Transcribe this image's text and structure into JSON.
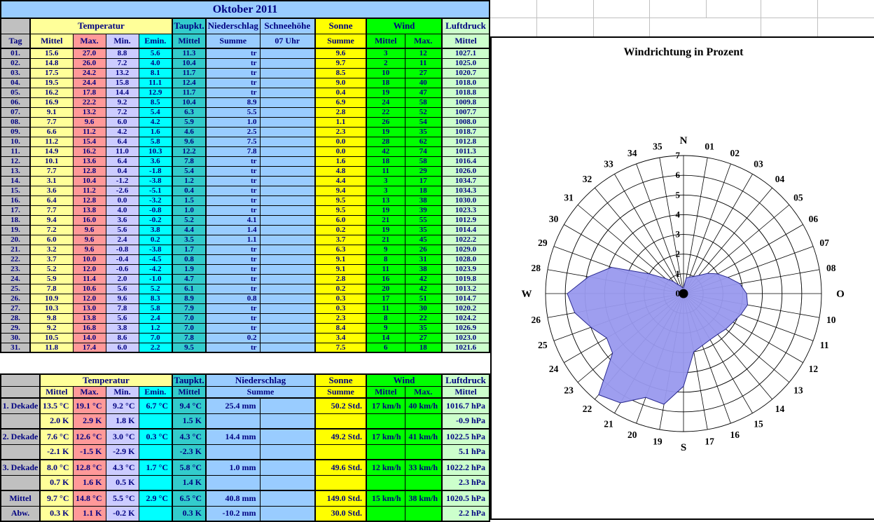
{
  "title": "Oktober 2011",
  "colors": {
    "header_blue": "#99CCFF",
    "yellow_pale": "#FFFF99",
    "salmon": "#FF9999",
    "lavender": "#CCCCFF",
    "cyan": "#00FFFF",
    "teal": "#33CCCC",
    "light_blue": "#99CCFF",
    "yellow": "#FFFF00",
    "green": "#00FF00",
    "pale_green": "#CCFFCC",
    "gray": "#C0C0C0",
    "text_navy": "#000080",
    "rose_fill": "#9999EE",
    "rose_stroke": "#2A2A90"
  },
  "daily_table": {
    "group_headers": [
      {
        "label": "",
        "span": 1
      },
      {
        "label": "Temperatur",
        "span": 4
      },
      {
        "label": "Taupkt.",
        "span": 1
      },
      {
        "label": "Niederschlag",
        "span": 1
      },
      {
        "label": "Schneehöhe",
        "span": 1
      },
      {
        "label": "Sonne",
        "span": 1
      },
      {
        "label": "Wind",
        "span": 2
      },
      {
        "label": "Luftdruck",
        "span": 1
      }
    ],
    "col_headers": [
      "Tag",
      "Mittel",
      "Max.",
      "Min.",
      "Emin.",
      "Mittel",
      "Summe",
      "07 Uhr",
      "Summe",
      "Mittel",
      "Max.",
      "Mittel"
    ],
    "rows": [
      [
        "01.",
        "15.6",
        "27.0",
        "8.8",
        "5.6",
        "11.3",
        "tr",
        "",
        "9.6",
        "3",
        "12",
        "1027.1"
      ],
      [
        "02.",
        "14.8",
        "26.0",
        "7.2",
        "4.0",
        "10.4",
        "tr",
        "",
        "9.7",
        "2",
        "11",
        "1025.0"
      ],
      [
        "03.",
        "17.5",
        "24.2",
        "13.2",
        "8.1",
        "11.7",
        "tr",
        "",
        "8.5",
        "10",
        "27",
        "1020.7"
      ],
      [
        "04.",
        "19.5",
        "24.4",
        "15.8",
        "11.1",
        "12.4",
        "tr",
        "",
        "9.0",
        "18",
        "40",
        "1018.0"
      ],
      [
        "05.",
        "16.2",
        "17.8",
        "14.4",
        "12.9",
        "11.7",
        "tr",
        "",
        "0.4",
        "19",
        "47",
        "1018.8"
      ],
      [
        "06.",
        "16.9",
        "22.2",
        "9.2",
        "8.5",
        "10.4",
        "8.9",
        "",
        "6.9",
        "24",
        "58",
        "1009.8"
      ],
      [
        "07.",
        "9.1",
        "13.2",
        "7.2",
        "5.4",
        "6.3",
        "5.5",
        "",
        "2.8",
        "22",
        "52",
        "1007.7"
      ],
      [
        "08.",
        "7.7",
        "9.6",
        "6.0",
        "4.2",
        "5.9",
        "1.0",
        "",
        "1.1",
        "26",
        "54",
        "1008.0"
      ],
      [
        "09.",
        "6.6",
        "11.2",
        "4.2",
        "1.6",
        "4.6",
        "2.5",
        "",
        "2.3",
        "19",
        "35",
        "1018.7"
      ],
      [
        "10.",
        "11.2",
        "15.4",
        "6.4",
        "5.8",
        "9.6",
        "7.5",
        "",
        "0.0",
        "28",
        "62",
        "1012.8"
      ],
      [
        "11.",
        "14.9",
        "16.2",
        "11.0",
        "10.3",
        "12.2",
        "7.8",
        "",
        "0.0",
        "42",
        "74",
        "1011.3"
      ],
      [
        "12.",
        "10.1",
        "13.6",
        "6.4",
        "3.6",
        "7.8",
        "tr",
        "",
        "1.6",
        "18",
        "58",
        "1016.4"
      ],
      [
        "13.",
        "7.7",
        "12.8",
        "0.4",
        "-1.8",
        "5.4",
        "tr",
        "",
        "4.8",
        "11",
        "29",
        "1026.0"
      ],
      [
        "14.",
        "3.1",
        "10.4",
        "-1.2",
        "-3.8",
        "1.2",
        "tr",
        "",
        "4.4",
        "3",
        "17",
        "1034.7"
      ],
      [
        "15.",
        "3.6",
        "11.2",
        "-2.6",
        "-5.1",
        "0.4",
        "tr",
        "",
        "9.4",
        "3",
        "18",
        "1034.3"
      ],
      [
        "16.",
        "6.4",
        "12.8",
        "0.0",
        "-3.2",
        "1.5",
        "tr",
        "",
        "9.5",
        "13",
        "38",
        "1030.0"
      ],
      [
        "17.",
        "7.7",
        "13.8",
        "4.0",
        "-0.8",
        "1.0",
        "tr",
        "",
        "9.5",
        "19",
        "39",
        "1023.3"
      ],
      [
        "18.",
        "9.4",
        "16.0",
        "3.6",
        "-0.2",
        "5.2",
        "4.1",
        "",
        "6.0",
        "21",
        "55",
        "1012.9"
      ],
      [
        "19.",
        "7.2",
        "9.6",
        "5.6",
        "3.8",
        "4.4",
        "1.4",
        "",
        "0.2",
        "19",
        "35",
        "1014.4"
      ],
      [
        "20.",
        "6.0",
        "9.6",
        "2.4",
        "0.2",
        "3.5",
        "1.1",
        "",
        "3.7",
        "21",
        "45",
        "1022.2"
      ],
      [
        "21.",
        "3.2",
        "9.6",
        "-0.8",
        "-3.8",
        "1.7",
        "tr",
        "",
        "6.3",
        "9",
        "26",
        "1029.0"
      ],
      [
        "22.",
        "3.7",
        "10.0",
        "-0.4",
        "-4.5",
        "0.8",
        "tr",
        "",
        "9.1",
        "8",
        "31",
        "1028.0"
      ],
      [
        "23.",
        "5.2",
        "12.0",
        "-0.6",
        "-4.2",
        "1.9",
        "tr",
        "",
        "9.1",
        "11",
        "38",
        "1023.9"
      ],
      [
        "24.",
        "5.9",
        "11.4",
        "2.0",
        "-1.0",
        "4.7",
        "tr",
        "",
        "2.8",
        "16",
        "42",
        "1019.8"
      ],
      [
        "25.",
        "7.8",
        "10.6",
        "5.6",
        "5.2",
        "6.1",
        "tr",
        "",
        "0.2",
        "20",
        "42",
        "1013.2"
      ],
      [
        "26.",
        "10.9",
        "12.0",
        "9.6",
        "8.3",
        "8.9",
        "0.8",
        "",
        "0.3",
        "17",
        "51",
        "1014.7"
      ],
      [
        "27.",
        "10.3",
        "13.0",
        "7.8",
        "5.8",
        "7.9",
        "tr",
        "",
        "0.3",
        "11",
        "30",
        "1020.2"
      ],
      [
        "28.",
        "9.8",
        "13.8",
        "5.6",
        "2.4",
        "7.0",
        "tr",
        "",
        "2.3",
        "8",
        "22",
        "1024.2"
      ],
      [
        "29.",
        "9.2",
        "16.8",
        "3.8",
        "1.2",
        "7.0",
        "tr",
        "",
        "8.4",
        "9",
        "35",
        "1026.9"
      ],
      [
        "30.",
        "10.5",
        "14.0",
        "8.6",
        "7.0",
        "7.8",
        "0.2",
        "",
        "3.4",
        "14",
        "27",
        "1023.0"
      ],
      [
        "31.",
        "11.8",
        "17.4",
        "6.0",
        "2.2",
        "9.5",
        "tr",
        "",
        "7.5",
        "6",
        "18",
        "1021.6"
      ]
    ]
  },
  "summary_table": {
    "group_headers": [
      {
        "label": "",
        "span": 1
      },
      {
        "label": "Temperatur",
        "span": 4
      },
      {
        "label": "Taupkt.",
        "span": 1
      },
      {
        "label": "Niederschlag",
        "span": 2
      },
      {
        "label": "Sonne",
        "span": 1
      },
      {
        "label": "Wind",
        "span": 2
      },
      {
        "label": "Luftdruck",
        "span": 1
      }
    ],
    "sub_headers": [
      {
        "label": "",
        "span": 1
      },
      {
        "label": "Mittel",
        "span": 1
      },
      {
        "label": "Max.",
        "span": 1
      },
      {
        "label": "Min.",
        "span": 1
      },
      {
        "label": "Emin.",
        "span": 1
      },
      {
        "label": "Mittel",
        "span": 1
      },
      {
        "label": "Summe",
        "span": 2
      },
      {
        "label": "Summe",
        "span": 1
      },
      {
        "label": "Mittel",
        "span": 1
      },
      {
        "label": "Max.",
        "span": 1
      },
      {
        "label": "Mittel",
        "span": 1
      }
    ],
    "rows": [
      [
        "1. Dekade",
        "13.5 °C",
        "19.1 °C",
        "9.2 °C",
        "6.7 °C",
        "9.4 °C",
        "25.4 mm",
        "",
        "50.2 Std.",
        "17 km/h",
        "40 km/h",
        "1016.7 hPa"
      ],
      [
        "",
        "2.0 K",
        "2.9 K",
        "1.8 K",
        "",
        "1.5 K",
        "",
        "",
        "",
        "",
        "",
        "-0.9 hPa"
      ],
      [
        "2. Dekade",
        "7.6 °C",
        "12.6 °C",
        "3.0 °C",
        "0.3 °C",
        "4.3 °C",
        "14.4 mm",
        "",
        "49.2 Std.",
        "17 km/h",
        "41 km/h",
        "1022.5 hPa"
      ],
      [
        "",
        "-2.1 K",
        "-1.5 K",
        "-2.9 K",
        "",
        "-2.3 K",
        "",
        "",
        "",
        "",
        "",
        "5.1 hPa"
      ],
      [
        "3. Dekade",
        "8.0 °C",
        "12.8 °C",
        "4.3 °C",
        "1.7 °C",
        "5.8 °C",
        "1.0 mm",
        "",
        "49.6 Std.",
        "12 km/h",
        "33 km/h",
        "1022.2 hPa"
      ],
      [
        "",
        "0.7 K",
        "1.6 K",
        "0.5 K",
        "",
        "1.4 K",
        "",
        "",
        "",
        "",
        "",
        "2.3 hPa"
      ],
      [
        "Mittel",
        "9.7 °C",
        "14.8 °C",
        "5.5 °C",
        "2.9 °C",
        "6.5 °C",
        "40.8 mm",
        "",
        "149.0 Std.",
        "15 km/h",
        "38 km/h",
        "1020.5 hPa"
      ],
      [
        "Abw.",
        "0.3 K",
        "1.1 K",
        "-0.2 K",
        "",
        "0.3 K",
        "-10.2 mm",
        "",
        "30.0 Std.",
        "",
        "",
        "2.2 hPa"
      ]
    ]
  },
  "chart_data": {
    "type": "radar",
    "title": "Windrichtung in Prozent",
    "categories": [
      "01",
      "02",
      "03",
      "04",
      "05",
      "06",
      "07",
      "08",
      "O",
      "10",
      "11",
      "12",
      "13",
      "14",
      "15",
      "16",
      "17",
      "S",
      "19",
      "20",
      "21",
      "22",
      "23",
      "24",
      "25",
      "26",
      "W",
      "28",
      "29",
      "30",
      "31",
      "32",
      "33",
      "34",
      "35",
      "N"
    ],
    "values": [
      0.8,
      0.9,
      1.0,
      1.2,
      1.6,
      2.0,
      2.4,
      2.9,
      3.2,
      3.3,
      3.1,
      2.9,
      2.8,
      2.7,
      2.7,
      2.8,
      3.0,
      4.7,
      5.7,
      5.6,
      6.4,
      6.7,
      4.7,
      4.5,
      5.0,
      5.6,
      5.9,
      4.9,
      3.9,
      2.0,
      1.2,
      0.8,
      0.5,
      0.4,
      0.3,
      0.3
    ],
    "r_ticks": [
      "0",
      "1",
      "2",
      "3",
      "4",
      "5",
      "6",
      "7"
    ],
    "rmax": 7,
    "angle_step_deg": 10,
    "grid": "on",
    "legend": "none"
  }
}
